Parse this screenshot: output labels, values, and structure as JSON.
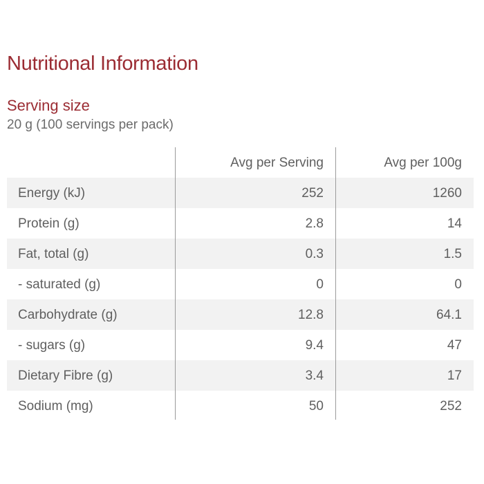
{
  "title": "Nutritional Information",
  "serving": {
    "label": "Serving size",
    "value": "20 g (100 servings per pack)"
  },
  "table": {
    "headers": {
      "label": "",
      "per_serving": "Avg per Serving",
      "per_100g": "Avg per 100g"
    },
    "rows": [
      {
        "label": "Energy (kJ)",
        "per_serving": "252",
        "per_100g": "1260"
      },
      {
        "label": "Protein (g)",
        "per_serving": "2.8",
        "per_100g": "14"
      },
      {
        "label": "Fat, total (g)",
        "per_serving": "0.3",
        "per_100g": "1.5"
      },
      {
        "label": "- saturated (g)",
        "per_serving": "0",
        "per_100g": "0"
      },
      {
        "label": "Carbohydrate (g)",
        "per_serving": "12.8",
        "per_100g": "64.1"
      },
      {
        "label": "- sugars (g)",
        "per_serving": "9.4",
        "per_100g": "47"
      },
      {
        "label": "Dietary Fibre (g)",
        "per_serving": "3.4",
        "per_100g": "17"
      },
      {
        "label": "Sodium (mg)",
        "per_serving": "50",
        "per_100g": "252"
      }
    ]
  },
  "colors": {
    "accent": "#9b2c33",
    "text": "#5f5f5f",
    "row_shade": "#f2f2f2",
    "divider": "#9a9a9a"
  }
}
